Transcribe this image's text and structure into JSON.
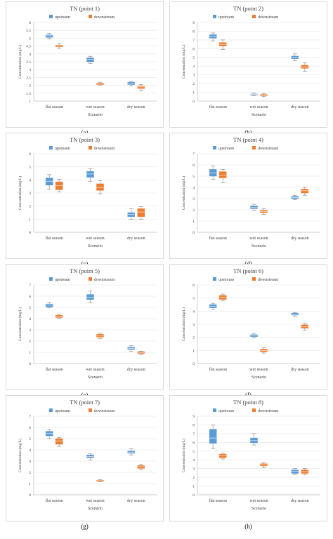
{
  "colors": {
    "upstream": "#5b9bd5",
    "downstream": "#ed7d31",
    "frame": "#d9d9d9",
    "grid": "#e6e6e6"
  },
  "chart_data": [
    {
      "type": "boxplot",
      "panel_label": "(a)",
      "title": "TN (point 1)",
      "xlabel": "Scenario",
      "ylabel": "Concentration (mg/L)",
      "ylim": [
        1,
        6
      ],
      "yticks": [
        "1",
        "1.5",
        "2",
        "2.5",
        "3",
        "3.5",
        "4",
        "4.5",
        "5",
        "5.5",
        "6"
      ],
      "categories": [
        "flat season",
        "wet season",
        "dry season"
      ],
      "legend": [
        "upstream",
        "downstream"
      ],
      "series": [
        {
          "name": "upstream",
          "boxes": [
            [
              4.95,
              5.05,
              5.15,
              5.2,
              5.3
            ],
            [
              3.4,
              3.5,
              3.65,
              3.75,
              3.85
            ],
            [
              1.95,
              2.05,
              2.12,
              2.2,
              2.25
            ]
          ]
        },
        {
          "name": "downstream",
          "boxes": [
            [
              4.35,
              4.45,
              4.5,
              4.55,
              4.65
            ],
            [
              2.0,
              2.05,
              2.1,
              2.15,
              2.2
            ],
            [
              1.65,
              1.8,
              1.9,
              1.95,
              2.05
            ]
          ]
        }
      ]
    },
    {
      "type": "boxplot",
      "panel_label": "(b)",
      "title": "TN (point 2)",
      "xlabel": "Scenario",
      "ylabel": "Concentration (mg/L)",
      "ylim": [
        0,
        9
      ],
      "yticks": [
        "0",
        "1",
        "2",
        "3",
        "4",
        "5",
        "6",
        "7",
        "8",
        "9"
      ],
      "categories": [
        "flat season",
        "wet season",
        "dry season"
      ],
      "legend": [
        "upstream",
        "downstream"
      ],
      "series": [
        {
          "name": "upstream",
          "boxes": [
            [
              6.9,
              7.2,
              7.4,
              7.6,
              7.8
            ],
            [
              0.6,
              0.7,
              0.75,
              0.8,
              0.9
            ],
            [
              4.6,
              4.85,
              5.0,
              5.15,
              5.4
            ]
          ]
        },
        {
          "name": "downstream",
          "boxes": [
            [
              5.9,
              6.3,
              6.5,
              6.7,
              7.0
            ],
            [
              0.5,
              0.6,
              0.65,
              0.75,
              0.85
            ],
            [
              3.4,
              3.75,
              3.9,
              4.1,
              4.4
            ]
          ]
        }
      ]
    },
    {
      "type": "boxplot",
      "panel_label": "(c)",
      "title": "TN (point 3)",
      "xlabel": "Scenario",
      "ylabel": "Concentration (mg/L)",
      "ylim": [
        0,
        6
      ],
      "yticks": [
        "0",
        "1",
        "2",
        "3",
        "4",
        "5",
        "6"
      ],
      "categories": [
        "flat season",
        "wet season",
        "dry season"
      ],
      "legend": [
        "upstream",
        "downstream"
      ],
      "series": [
        {
          "name": "upstream",
          "boxes": [
            [
              3.3,
              3.6,
              3.9,
              4.15,
              4.4
            ],
            [
              3.9,
              4.2,
              4.45,
              4.65,
              4.85
            ],
            [
              1.0,
              1.2,
              1.35,
              1.5,
              1.8
            ]
          ]
        },
        {
          "name": "downstream",
          "boxes": [
            [
              3.1,
              3.25,
              3.55,
              3.85,
              4.05
            ],
            [
              2.95,
              3.2,
              3.4,
              3.7,
              3.95
            ],
            [
              1.0,
              1.2,
              1.55,
              1.8,
              1.95
            ]
          ]
        }
      ]
    },
    {
      "type": "boxplot",
      "panel_label": "(d)",
      "title": "TN (point 4)",
      "xlabel": "Scenario",
      "ylabel": "Concentration (mg/L)",
      "ylim": [
        0,
        7
      ],
      "yticks": [
        "0",
        "1",
        "2",
        "3",
        "4",
        "5",
        "6",
        "7"
      ],
      "categories": [
        "flat season",
        "wet season",
        "dry season"
      ],
      "legend": [
        "upstream",
        "downstream"
      ],
      "series": [
        {
          "name": "upstream",
          "boxes": [
            [
              4.7,
              5.0,
              5.3,
              5.6,
              5.9
            ],
            [
              1.95,
              2.1,
              2.2,
              2.35,
              2.5
            ],
            [
              2.9,
              3.0,
              3.1,
              3.2,
              3.3
            ]
          ]
        },
        {
          "name": "downstream",
          "boxes": [
            [
              4.4,
              4.85,
              5.1,
              5.4,
              5.6
            ],
            [
              1.6,
              1.75,
              1.85,
              1.95,
              2.1
            ],
            [
              3.3,
              3.5,
              3.7,
              3.85,
              4.0
            ]
          ]
        }
      ]
    },
    {
      "type": "boxplot",
      "panel_label": "(e)",
      "title": "TN (point 5)",
      "xlabel": "Scenario",
      "ylabel": "Concentration (mg/L)",
      "ylim": [
        0,
        7
      ],
      "yticks": [
        "0",
        "1",
        "2",
        "3",
        "4",
        "5",
        "6",
        "7"
      ],
      "categories": [
        "flat season",
        "wet season",
        "dry season"
      ],
      "legend": [
        "upstream",
        "downstream"
      ],
      "series": [
        {
          "name": "upstream",
          "boxes": [
            [
              4.95,
              5.05,
              5.2,
              5.3,
              5.45
            ],
            [
              5.4,
              5.7,
              5.9,
              6.15,
              6.45
            ],
            [
              1.1,
              1.25,
              1.35,
              1.45,
              1.6
            ]
          ]
        },
        {
          "name": "downstream",
          "boxes": [
            [
              4.05,
              4.1,
              4.2,
              4.3,
              4.4
            ],
            [
              2.2,
              2.35,
              2.45,
              2.6,
              2.7
            ],
            [
              0.8,
              0.9,
              0.95,
              1.05,
              1.1
            ]
          ]
        }
      ]
    },
    {
      "type": "boxplot",
      "panel_label": "(f)",
      "title": "TN (point 6)",
      "xlabel": "Scenario",
      "ylabel": "Concentration (mg/L)",
      "ylim": [
        0,
        6
      ],
      "yticks": [
        "0",
        "1",
        "2",
        "3",
        "4",
        "5",
        "6"
      ],
      "categories": [
        "flat season",
        "wet season",
        "dry season"
      ],
      "legend": [
        "upstream",
        "downstream"
      ],
      "series": [
        {
          "name": "upstream",
          "boxes": [
            [
              4.15,
              4.25,
              4.35,
              4.5,
              4.6
            ],
            [
              1.95,
              2.05,
              2.1,
              2.2,
              2.3
            ],
            [
              3.6,
              3.7,
              3.75,
              3.85,
              3.9
            ]
          ]
        },
        {
          "name": "downstream",
          "boxes": [
            [
              4.8,
              4.9,
              5.05,
              5.2,
              5.3
            ],
            [
              0.8,
              0.9,
              1.0,
              1.1,
              1.2
            ],
            [
              2.55,
              2.7,
              2.8,
              2.95,
              3.05
            ]
          ]
        }
      ]
    },
    {
      "type": "boxplot",
      "panel_label": "(g)",
      "title": "TN (point 7)",
      "xlabel": "Scenario",
      "ylabel": "Concentration (mg/L)",
      "ylim": [
        0,
        7
      ],
      "yticks": [
        "0",
        "1",
        "2",
        "3",
        "4",
        "5",
        "6",
        "7"
      ],
      "categories": [
        "flat season",
        "wet season",
        "dry season"
      ],
      "legend": [
        "upstream",
        "downstream"
      ],
      "series": [
        {
          "name": "upstream",
          "boxes": [
            [
              5.0,
              5.25,
              5.45,
              5.65,
              5.8
            ],
            [
              3.1,
              3.3,
              3.4,
              3.55,
              3.65
            ],
            [
              3.55,
              3.7,
              3.8,
              3.9,
              4.1
            ]
          ]
        },
        {
          "name": "downstream",
          "boxes": [
            [
              4.3,
              4.5,
              4.8,
              5.0,
              5.1
            ],
            [
              1.15,
              1.2,
              1.25,
              1.3,
              1.35
            ],
            [
              2.25,
              2.35,
              2.5,
              2.6,
              2.7
            ]
          ]
        }
      ]
    },
    {
      "type": "boxplot",
      "panel_label": "(h)",
      "title": "TN (point 8)",
      "xlabel": "Scenario",
      "ylabel": "Concentration (mg/L)",
      "ylim": [
        0,
        9
      ],
      "yticks": [
        "0",
        "1",
        "2",
        "3",
        "4",
        "5",
        "6",
        "7",
        "8",
        "9"
      ],
      "categories": [
        "flat season",
        "wet season",
        "dry season"
      ],
      "legend": [
        "upstream",
        "downstream"
      ],
      "series": [
        {
          "name": "upstream",
          "boxes": [
            [
              5.3,
              5.9,
              6.5,
              7.5,
              8.0
            ],
            [
              5.7,
              5.95,
              6.2,
              6.5,
              7.0
            ],
            [
              2.3,
              2.45,
              2.7,
              2.85,
              3.0
            ]
          ]
        },
        {
          "name": "downstream",
          "boxes": [
            [
              4.1,
              4.25,
              4.45,
              4.65,
              4.8
            ],
            [
              3.1,
              3.3,
              3.4,
              3.55,
              3.7
            ],
            [
              2.3,
              2.45,
              2.65,
              2.85,
              3.0
            ]
          ]
        }
      ]
    }
  ]
}
